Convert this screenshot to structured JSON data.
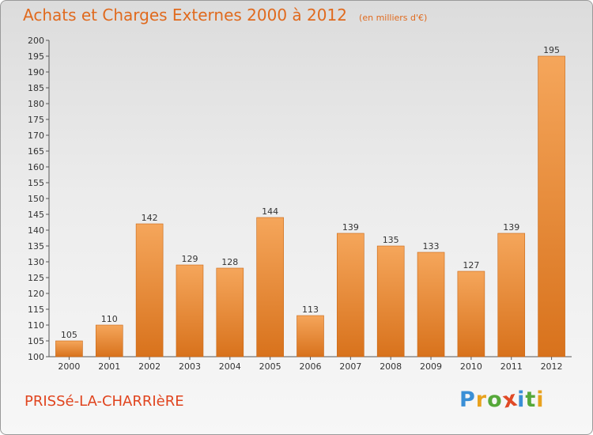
{
  "header": {
    "title": "Achats et Charges Externes 2000 à 2012",
    "subtitle": "(en milliers d'€)"
  },
  "footer": {
    "commune": "PRISSé-LA-CHARRIèRE",
    "brand": "Proxiti",
    "brand_letter_colors": [
      "#3a8fd6",
      "#e8a21e",
      "#56a83a",
      "#e04a26",
      "#3a8fd6",
      "#56a83a",
      "#e8a21e"
    ]
  },
  "chart_data": {
    "type": "bar",
    "categories": [
      "2000",
      "2001",
      "2002",
      "2003",
      "2004",
      "2005",
      "2006",
      "2007",
      "2008",
      "2009",
      "2010",
      "2011",
      "2012"
    ],
    "values": [
      105,
      110,
      142,
      129,
      128,
      144,
      113,
      139,
      135,
      133,
      127,
      139,
      195
    ],
    "ylim": [
      100,
      200
    ],
    "yticks": [
      100,
      105,
      110,
      115,
      120,
      125,
      130,
      135,
      140,
      145,
      150,
      155,
      160,
      165,
      170,
      175,
      180,
      185,
      190,
      195,
      200
    ],
    "grid": false,
    "bar_color_top": "#f5a65b",
    "bar_color_bottom": "#d8721c",
    "title": "Achats et Charges Externes 2000 à 2012",
    "subtitle": "(en milliers d'€)",
    "xlabel": "",
    "ylabel": ""
  }
}
